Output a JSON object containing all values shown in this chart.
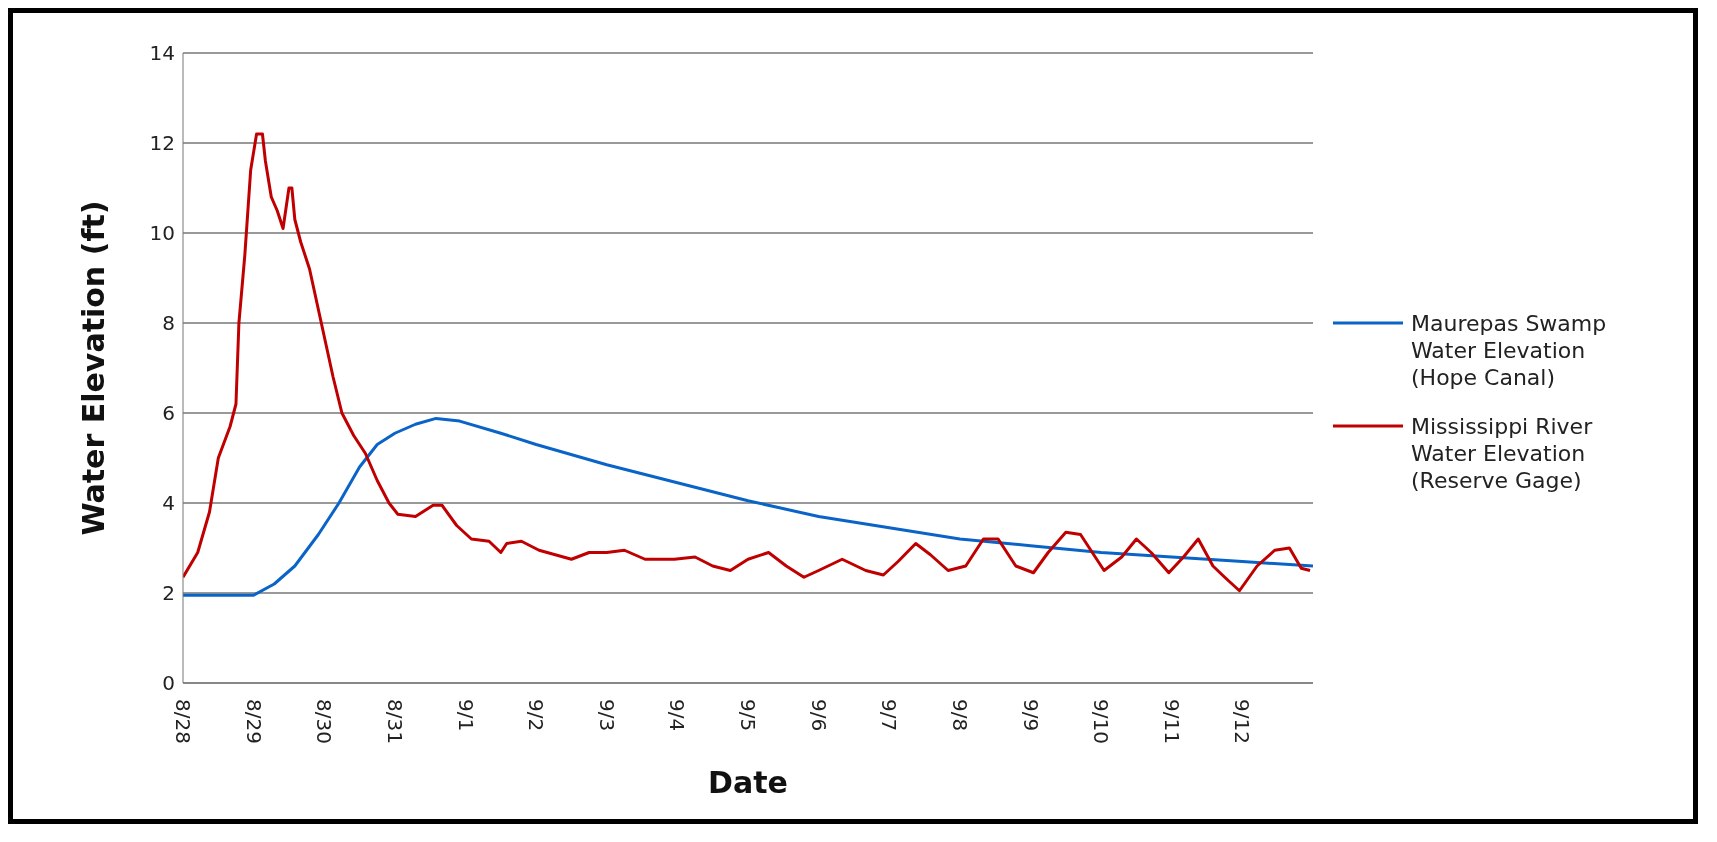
{
  "chart_data": {
    "type": "line",
    "xlabel": "Date",
    "ylabel": "Water Elevation (ft)",
    "xlim": [
      "--08-28",
      "--09-13"
    ],
    "xticks": [
      {
        "value": "--08-28",
        "label": "8/28"
      },
      {
        "value": "--08-29",
        "label": "8/29"
      },
      {
        "value": "--08-30",
        "label": "8/30"
      },
      {
        "value": "--08-31",
        "label": "8/31"
      },
      {
        "value": "--09-01",
        "label": "9/1"
      },
      {
        "value": "--09-02",
        "label": "9/2"
      },
      {
        "value": "--09-03",
        "label": "9/3"
      },
      {
        "value": "--09-04",
        "label": "9/4"
      },
      {
        "value": "--09-05",
        "label": "9/5"
      },
      {
        "value": "--09-06",
        "label": "9/6"
      },
      {
        "value": "--09-07",
        "label": "9/7"
      },
      {
        "value": "--09-08",
        "label": "9/8"
      },
      {
        "value": "--09-09",
        "label": "9/9"
      },
      {
        "value": "--09-10",
        "label": "9/10"
      },
      {
        "value": "--09-11",
        "label": "9/11"
      },
      {
        "value": "--09-12",
        "label": "9/12"
      }
    ],
    "ylim": [
      0,
      14
    ],
    "yticks": [
      0,
      2,
      4,
      6,
      8,
      10,
      12,
      14
    ],
    "grid": "y",
    "legend": "right",
    "marker": "none",
    "line_style": "solid",
    "series": [
      {
        "name": "Maurepas Swamp Water Elevation (Hope Canal)",
        "color": "#0a64c8",
        "x": [
          "--08-28T00:00",
          "--08-29T00:00",
          "--08-29T07:00",
          "--08-29T14:00",
          "--08-29T22:00",
          "--08-30T05:00",
          "--08-30T12:00",
          "--08-30T18:00",
          "--08-31T00:00",
          "--08-31T07:00",
          "--08-31T14:00",
          "--08-31T22:00",
          "--09-01T12:00",
          "--09-02T00:00",
          "--09-03T00:00",
          "--09-04T00:00",
          "--09-05T00:00",
          "--09-06T00:00",
          "--09-07T00:00",
          "--09-08T00:00",
          "--09-09T00:00",
          "--09-10T00:00",
          "--09-11T00:00",
          "--09-12T00:00",
          "--09-13T00:00"
        ],
        "values": [
          1.95,
          1.95,
          2.2,
          2.6,
          3.3,
          4.0,
          4.8,
          5.3,
          5.55,
          5.75,
          5.88,
          5.82,
          5.55,
          5.3,
          4.85,
          4.45,
          4.05,
          3.7,
          3.45,
          3.2,
          3.05,
          2.9,
          2.8,
          2.7,
          2.6
        ]
      },
      {
        "name": "Mississippi River Water Elevation (Reserve Gage)",
        "color": "#c00000",
        "x": [
          "--08-28T00:00",
          "--08-28T05:00",
          "--08-28T09:00",
          "--08-28T12:00",
          "--08-28T16:00",
          "--08-28T18:00",
          "--08-28T19:00",
          "--08-28T21:00",
          "--08-28T23:00",
          "--08-29T01:00",
          "--08-29T03:00",
          "--08-29T04:00",
          "--08-29T06:00",
          "--08-29T08:00",
          "--08-29T10:00",
          "--08-29T12:00",
          "--08-29T13:00",
          "--08-29T14:00",
          "--08-29T16:00",
          "--08-29T19:00",
          "--08-29T23:00",
          "--08-30T03:00",
          "--08-30T06:00",
          "--08-30T10:00",
          "--08-30T14:00",
          "--08-30T18:00",
          "--08-30T22:00",
          "--08-31T01:00",
          "--08-31T07:00",
          "--08-31T13:00",
          "--08-31T16:00",
          "--08-31T21:00",
          "--09-01T02:00",
          "--09-01T08:00",
          "--09-01T12:00",
          "--09-01T14:00",
          "--09-01T19:00",
          "--09-02T01:00",
          "--09-02T12:00",
          "--09-02T18:00",
          "--09-03T00:00",
          "--09-03T06:00",
          "--09-03T13:00",
          "--09-03T23:00",
          "--09-04T06:00",
          "--09-04T12:00",
          "--09-04T18:00",
          "--09-05T00:00",
          "--09-05T07:00",
          "--09-05T13:00",
          "--09-05T19:00",
          "--09-06T00:00",
          "--09-06T08:00",
          "--09-06T16:00",
          "--09-06T22:00",
          "--09-07T03:00",
          "--09-07T09:00",
          "--09-07T14:00",
          "--09-07T20:00",
          "--09-08T02:00",
          "--09-08T08:00",
          "--09-08T13:00",
          "--09-08T19:00",
          "--09-09T01:00",
          "--09-09T06:00",
          "--09-09T12:00",
          "--09-09T17:00",
          "--09-10T01:00",
          "--09-10T07:00",
          "--09-10T12:00",
          "--09-10T17:00",
          "--09-10T23:00",
          "--09-11T04:00",
          "--09-11T09:00",
          "--09-11T14:00",
          "--09-11T18:00",
          "--09-11T23:00",
          "--09-12T05:00",
          "--09-12T11:00",
          "--09-12T16:00",
          "--09-12T20:00",
          "--09-12T23:00"
        ],
        "values": [
          2.35,
          2.9,
          3.8,
          5.0,
          5.7,
          6.2,
          8.0,
          9.5,
          11.4,
          12.2,
          12.2,
          11.6,
          10.8,
          10.5,
          10.1,
          11.0,
          11.0,
          10.3,
          9.8,
          9.2,
          8.0,
          6.8,
          6.0,
          5.5,
          5.1,
          4.5,
          4.0,
          3.75,
          3.7,
          3.95,
          3.95,
          3.5,
          3.2,
          3.15,
          2.9,
          3.1,
          3.15,
          2.95,
          2.75,
          2.9,
          2.9,
          2.95,
          2.75,
          2.75,
          2.8,
          2.6,
          2.5,
          2.75,
          2.9,
          2.6,
          2.35,
          2.5,
          2.75,
          2.5,
          2.4,
          2.7,
          3.1,
          2.85,
          2.5,
          2.6,
          3.2,
          3.2,
          2.6,
          2.45,
          2.9,
          3.35,
          3.3,
          2.5,
          2.8,
          3.2,
          2.9,
          2.45,
          2.8,
          3.2,
          2.6,
          2.35,
          2.05,
          2.6,
          2.95,
          3.0,
          2.55,
          2.5
        ]
      }
    ]
  }
}
